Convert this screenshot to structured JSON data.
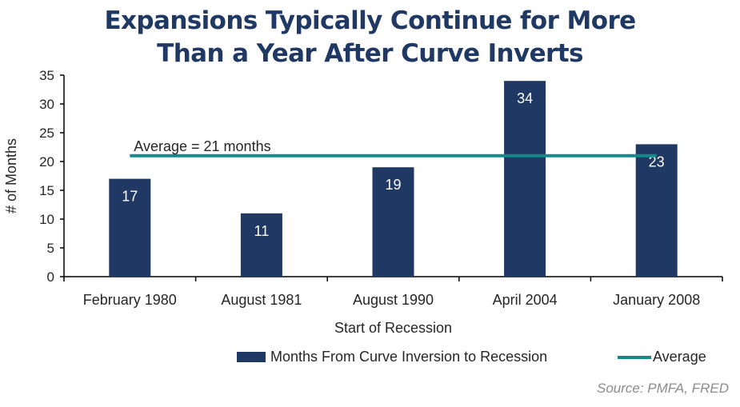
{
  "title_lines": [
    "Expansions Typically Continue for More",
    "Than a Year After Curve Inverts"
  ],
  "source": "Source: PMFA, FRED",
  "colors": {
    "bar": "#1f3864",
    "average": "#138a8a",
    "title": "#1f3864"
  },
  "chart_data": {
    "type": "bar",
    "categories": [
      "February 1980",
      "August 1981",
      "August 1990",
      "April 2004",
      "January 2008"
    ],
    "series": [
      {
        "name": "Months From Curve Inversion to Recession",
        "values": [
          17,
          11,
          19,
          34,
          23
        ]
      }
    ],
    "average": {
      "name": "Average",
      "value": 21,
      "label": "Average = 21 months"
    },
    "xlabel": "Start of Recession",
    "ylabel": "# of Months",
    "ylim": [
      0,
      35
    ],
    "yticks": [
      "0",
      "5",
      "10",
      "15",
      "20",
      "25",
      "30",
      "35"
    ],
    "data_labels": [
      "17",
      "11",
      "19",
      "34",
      "23"
    ],
    "grid": false,
    "legend_position": "bottom-right"
  }
}
